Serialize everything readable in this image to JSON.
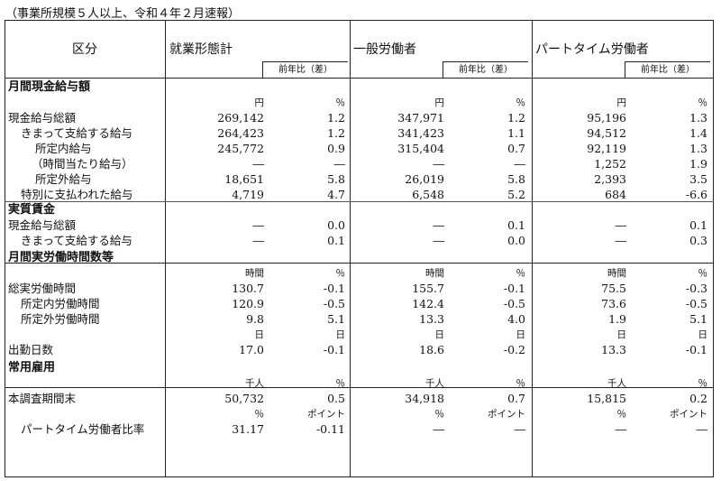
{
  "caption": "（事業所規模５人以上、令和４年２月速報）",
  "header": {
    "col_label": "区分",
    "groups": [
      "就業形態計",
      "一般労働者",
      "パートタイム労働者"
    ],
    "change_label": "前年比（差）"
  },
  "rows": [
    {
      "type": "section",
      "label": "月間現金給与額"
    },
    {
      "type": "unit",
      "vals": [
        "円",
        "％",
        "円",
        "％",
        "円",
        "％"
      ]
    },
    {
      "type": "data",
      "label": "現金給与総額",
      "indent": 0,
      "vals": [
        "269,142",
        "1.2",
        "347,971",
        "1.2",
        "95,196",
        "1.3"
      ]
    },
    {
      "type": "data",
      "label": "きまって支給する給与",
      "indent": 1,
      "vals": [
        "264,423",
        "1.2",
        "341,423",
        "1.1",
        "94,512",
        "1.4"
      ]
    },
    {
      "type": "data",
      "label": "所定内給与",
      "indent": 2,
      "vals": [
        "245,772",
        "0.9",
        "315,404",
        "0.7",
        "92,119",
        "1.3"
      ]
    },
    {
      "type": "data",
      "label": "（時間当たり給与）",
      "indent": 3,
      "vals": [
        "―",
        "―",
        "―",
        "―",
        "1,252",
        "1.9"
      ]
    },
    {
      "type": "data",
      "label": "所定外給与",
      "indent": 2,
      "vals": [
        "18,651",
        "5.8",
        "26,019",
        "5.8",
        "2,393",
        "3.5"
      ]
    },
    {
      "type": "data",
      "label": "特別に支払われた給与",
      "indent": 1,
      "vals": [
        "4,719",
        "4.7",
        "6,548",
        "5.2",
        "684",
        "-6.6"
      ]
    },
    {
      "type": "section",
      "label": "実質賃金"
    },
    {
      "type": "data",
      "label": "現金給与総額",
      "indent": 0,
      "vals": [
        "―",
        "0.0",
        "―",
        "0.1",
        "―",
        "0.1"
      ]
    },
    {
      "type": "data",
      "label": "きまって支給する給与",
      "indent": 1,
      "vals": [
        "―",
        "0.1",
        "―",
        "0.0",
        "―",
        "0.3"
      ]
    },
    {
      "type": "section",
      "label": "月間実労働時間数等"
    },
    {
      "type": "unit",
      "vals": [
        "時間",
        "％",
        "時間",
        "％",
        "時間",
        "％"
      ]
    },
    {
      "type": "data",
      "label": "総実労働時間",
      "indent": 0,
      "vals": [
        "130.7",
        "-0.1",
        "155.7",
        "-0.1",
        "75.5",
        "-0.3"
      ]
    },
    {
      "type": "data",
      "label": "所定内労働時間",
      "indent": 1,
      "vals": [
        "120.9",
        "-0.5",
        "142.4",
        "-0.5",
        "73.6",
        "-0.5"
      ]
    },
    {
      "type": "data",
      "label": "所定外労働時間",
      "indent": 1,
      "vals": [
        "9.8",
        "5.1",
        "13.3",
        "4.0",
        "1.9",
        "5.1"
      ]
    },
    {
      "type": "unit",
      "vals": [
        "日",
        "日",
        "日",
        "日",
        "日",
        "日"
      ]
    },
    {
      "type": "data",
      "label": "出勤日数",
      "indent": 0,
      "vals": [
        "17.0",
        "-0.1",
        "18.6",
        "-0.2",
        "13.3",
        "-0.1"
      ]
    },
    {
      "type": "section",
      "label": "常用雇用"
    },
    {
      "type": "unit",
      "vals": [
        "千人",
        "％",
        "千人",
        "％",
        "千人",
        "％"
      ]
    },
    {
      "type": "data",
      "label": "本調査期間末",
      "indent": 0,
      "vals": [
        "50,732",
        "0.5",
        "34,918",
        "0.7",
        "15,815",
        "0.2"
      ]
    },
    {
      "type": "unit",
      "vals": [
        "％",
        "ポイント",
        "％",
        "ポイント",
        "％",
        "ポイント"
      ]
    },
    {
      "type": "data",
      "label": "パートタイム労働者比率",
      "indent": 1,
      "vals": [
        "31.17",
        "-0.11",
        "―",
        "―",
        "―",
        "―"
      ]
    }
  ]
}
